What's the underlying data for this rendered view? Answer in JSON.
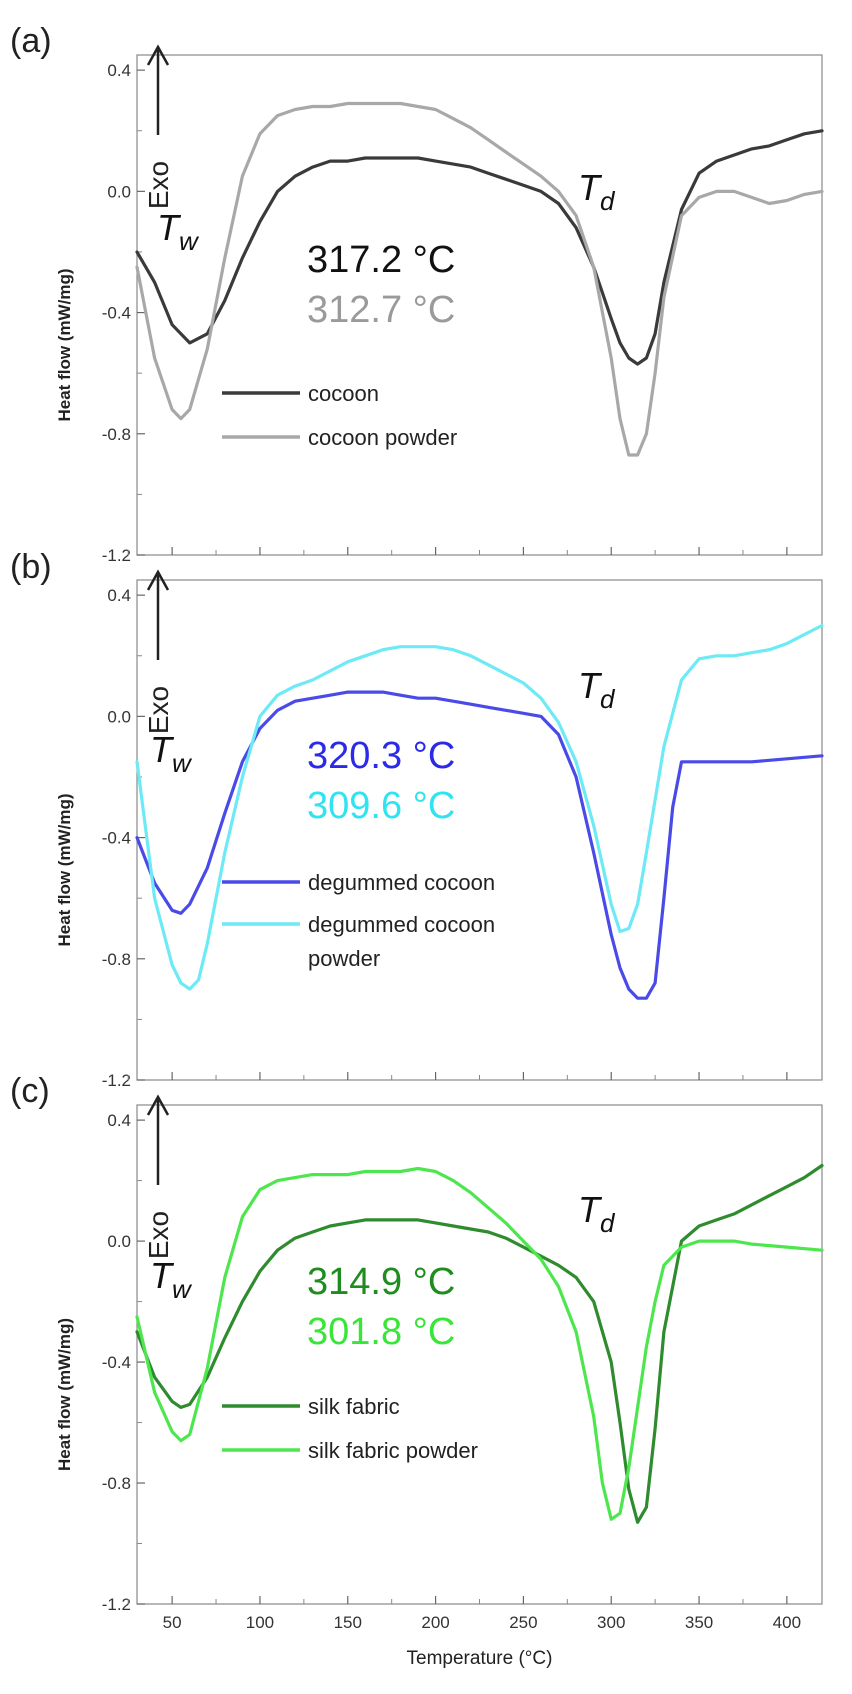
{
  "chart_data": [
    {
      "type": "line",
      "panel_label": "(a)",
      "ylabel": "Heat flow (mW/mg)",
      "xlabel": "",
      "exo_label": "Exo",
      "xlim": [
        30,
        420
      ],
      "ylim": [
        -1.2,
        0.45
      ],
      "yticks": [
        "0.4",
        "0.0",
        "-0.4",
        "-0.8",
        "-1.2"
      ],
      "ytick_values": [
        0.4,
        0.0,
        -0.4,
        -0.8,
        -1.2
      ],
      "xticks": [],
      "peak_labels": {
        "tw": "T",
        "tw_sub": "w",
        "td": "T",
        "td_sub": "d"
      },
      "temperatures": [
        {
          "text": "317.2 °C",
          "color": "#111111"
        },
        {
          "text": "312.7 °C",
          "color": "#9a9a9a"
        }
      ],
      "series": [
        {
          "name": "cocoon",
          "color": "#3a3a3a",
          "x": [
            30,
            40,
            50,
            60,
            70,
            80,
            90,
            100,
            110,
            120,
            130,
            140,
            150,
            160,
            170,
            180,
            190,
            200,
            210,
            220,
            230,
            240,
            250,
            260,
            270,
            280,
            290,
            300,
            305,
            310,
            315,
            320,
            325,
            330,
            340,
            350,
            360,
            370,
            380,
            390,
            400,
            410,
            420
          ],
          "y": [
            -0.2,
            -0.3,
            -0.44,
            -0.5,
            -0.47,
            -0.36,
            -0.22,
            -0.1,
            0.0,
            0.05,
            0.08,
            0.1,
            0.1,
            0.11,
            0.11,
            0.11,
            0.11,
            0.1,
            0.09,
            0.08,
            0.06,
            0.04,
            0.02,
            0.0,
            -0.04,
            -0.12,
            -0.25,
            -0.42,
            -0.5,
            -0.55,
            -0.57,
            -0.55,
            -0.47,
            -0.3,
            -0.06,
            0.06,
            0.1,
            0.12,
            0.14,
            0.15,
            0.17,
            0.19,
            0.2
          ]
        },
        {
          "name": "cocoon powder",
          "color": "#a8a8a8",
          "x": [
            30,
            40,
            50,
            55,
            60,
            70,
            80,
            90,
            100,
            110,
            120,
            130,
            140,
            150,
            160,
            170,
            180,
            190,
            200,
            210,
            220,
            230,
            240,
            250,
            260,
            270,
            280,
            290,
            300,
            305,
            310,
            315,
            320,
            325,
            330,
            340,
            350,
            360,
            370,
            380,
            390,
            400,
            410,
            420
          ],
          "y": [
            -0.25,
            -0.55,
            -0.72,
            -0.75,
            -0.72,
            -0.52,
            -0.22,
            0.05,
            0.19,
            0.25,
            0.27,
            0.28,
            0.28,
            0.29,
            0.29,
            0.29,
            0.29,
            0.28,
            0.27,
            0.24,
            0.21,
            0.17,
            0.13,
            0.09,
            0.05,
            0.0,
            -0.08,
            -0.25,
            -0.55,
            -0.75,
            -0.87,
            -0.87,
            -0.8,
            -0.6,
            -0.35,
            -0.08,
            -0.02,
            0.0,
            0.0,
            -0.02,
            -0.04,
            -0.03,
            -0.01,
            0.0
          ]
        }
      ]
    },
    {
      "type": "line",
      "panel_label": "(b)",
      "ylabel": "Heat flow (mW/mg)",
      "xlabel": "",
      "exo_label": "Exo",
      "xlim": [
        30,
        420
      ],
      "ylim": [
        -1.2,
        0.45
      ],
      "yticks": [
        "0.4",
        "0.0",
        "-0.4",
        "-0.8",
        "-1.2"
      ],
      "ytick_values": [
        0.4,
        0.0,
        -0.4,
        -0.8,
        -1.2
      ],
      "xticks": [],
      "peak_labels": {
        "tw": "T",
        "tw_sub": "w",
        "td": "T",
        "td_sub": "d"
      },
      "temperatures": [
        {
          "text": "320.3 °C",
          "color": "#2a2ae8"
        },
        {
          "text": "309.6 °C",
          "color": "#2fe3f0"
        }
      ],
      "series": [
        {
          "name": "degummed cocoon",
          "color": "#4a4ae8",
          "x": [
            30,
            40,
            50,
            55,
            60,
            70,
            80,
            90,
            100,
            110,
            120,
            130,
            140,
            150,
            160,
            170,
            180,
            190,
            200,
            210,
            220,
            230,
            240,
            250,
            260,
            270,
            280,
            290,
            300,
            305,
            310,
            315,
            320,
            325,
            330,
            335,
            340,
            350,
            360,
            380,
            400,
            420
          ],
          "y": [
            -0.4,
            -0.55,
            -0.64,
            -0.65,
            -0.62,
            -0.5,
            -0.32,
            -0.15,
            -0.04,
            0.02,
            0.05,
            0.06,
            0.07,
            0.08,
            0.08,
            0.08,
            0.07,
            0.06,
            0.06,
            0.05,
            0.04,
            0.03,
            0.02,
            0.01,
            0.0,
            -0.06,
            -0.2,
            -0.45,
            -0.72,
            -0.83,
            -0.9,
            -0.93,
            -0.93,
            -0.88,
            -0.6,
            -0.3,
            -0.15,
            -0.15,
            -0.15,
            -0.15,
            -0.14,
            -0.13
          ]
        },
        {
          "name": "degummed cocoon powder",
          "color": "#6deaf5",
          "x": [
            30,
            40,
            50,
            55,
            60,
            65,
            70,
            80,
            90,
            100,
            110,
            120,
            130,
            140,
            150,
            160,
            170,
            180,
            190,
            200,
            210,
            220,
            230,
            240,
            250,
            260,
            270,
            280,
            290,
            300,
            305,
            310,
            315,
            320,
            330,
            340,
            350,
            360,
            370,
            380,
            390,
            400,
            410,
            420
          ],
          "y": [
            -0.15,
            -0.6,
            -0.82,
            -0.88,
            -0.9,
            -0.87,
            -0.75,
            -0.45,
            -0.2,
            0.0,
            0.07,
            0.1,
            0.12,
            0.15,
            0.18,
            0.2,
            0.22,
            0.23,
            0.23,
            0.23,
            0.22,
            0.2,
            0.17,
            0.14,
            0.11,
            0.06,
            -0.02,
            -0.15,
            -0.36,
            -0.62,
            -0.71,
            -0.7,
            -0.62,
            -0.45,
            -0.1,
            0.12,
            0.19,
            0.2,
            0.2,
            0.21,
            0.22,
            0.24,
            0.27,
            0.3
          ]
        }
      ]
    },
    {
      "type": "line",
      "panel_label": "(c)",
      "ylabel": "Heat flow (mW/mg)",
      "xlabel": "Temperature (°C)",
      "exo_label": "Exo",
      "xlim": [
        30,
        420
      ],
      "ylim": [
        -1.2,
        0.45
      ],
      "yticks": [
        "0.4",
        "0.0",
        "-0.4",
        "-0.8",
        "-1.2"
      ],
      "ytick_values": [
        0.4,
        0.0,
        -0.4,
        -0.8,
        -1.2
      ],
      "xticks": [
        "50",
        "100",
        "150",
        "200",
        "250",
        "300",
        "350",
        "400"
      ],
      "xtick_values": [
        50,
        100,
        150,
        200,
        250,
        300,
        350,
        400
      ],
      "peak_labels": {
        "tw": "T",
        "tw_sub": "w",
        "td": "T",
        "td_sub": "d"
      },
      "temperatures": [
        {
          "text": "314.9 °C",
          "color": "#1e8c1e"
        },
        {
          "text": "301.8 °C",
          "color": "#38e638"
        }
      ],
      "series": [
        {
          "name": "silk fabric",
          "color": "#2e8b2e",
          "x": [
            30,
            40,
            50,
            55,
            60,
            70,
            80,
            90,
            100,
            110,
            120,
            130,
            140,
            150,
            160,
            170,
            180,
            190,
            200,
            210,
            220,
            230,
            240,
            250,
            260,
            270,
            280,
            290,
            300,
            305,
            310,
            315,
            320,
            325,
            330,
            340,
            350,
            360,
            370,
            380,
            390,
            400,
            410,
            420
          ],
          "y": [
            -0.3,
            -0.45,
            -0.53,
            -0.55,
            -0.54,
            -0.45,
            -0.32,
            -0.2,
            -0.1,
            -0.03,
            0.01,
            0.03,
            0.05,
            0.06,
            0.07,
            0.07,
            0.07,
            0.07,
            0.06,
            0.05,
            0.04,
            0.03,
            0.01,
            -0.02,
            -0.05,
            -0.08,
            -0.12,
            -0.2,
            -0.4,
            -0.6,
            -0.82,
            -0.93,
            -0.88,
            -0.62,
            -0.3,
            0.0,
            0.05,
            0.07,
            0.09,
            0.12,
            0.15,
            0.18,
            0.21,
            0.25
          ]
        },
        {
          "name": "silk fabric powder",
          "color": "#4ee64e",
          "x": [
            30,
            40,
            50,
            55,
            60,
            70,
            80,
            90,
            100,
            110,
            120,
            130,
            140,
            150,
            160,
            170,
            180,
            190,
            200,
            210,
            220,
            230,
            240,
            250,
            260,
            270,
            280,
            290,
            295,
            300,
            305,
            310,
            315,
            320,
            325,
            330,
            340,
            350,
            360,
            370,
            380,
            400,
            420
          ],
          "y": [
            -0.25,
            -0.5,
            -0.63,
            -0.66,
            -0.64,
            -0.42,
            -0.12,
            0.08,
            0.17,
            0.2,
            0.21,
            0.22,
            0.22,
            0.22,
            0.23,
            0.23,
            0.23,
            0.24,
            0.23,
            0.2,
            0.16,
            0.11,
            0.06,
            0.0,
            -0.06,
            -0.15,
            -0.3,
            -0.58,
            -0.8,
            -0.92,
            -0.9,
            -0.75,
            -0.55,
            -0.35,
            -0.2,
            -0.08,
            -0.02,
            0.0,
            0.0,
            0.0,
            -0.01,
            -0.02,
            -0.03
          ]
        }
      ]
    }
  ]
}
